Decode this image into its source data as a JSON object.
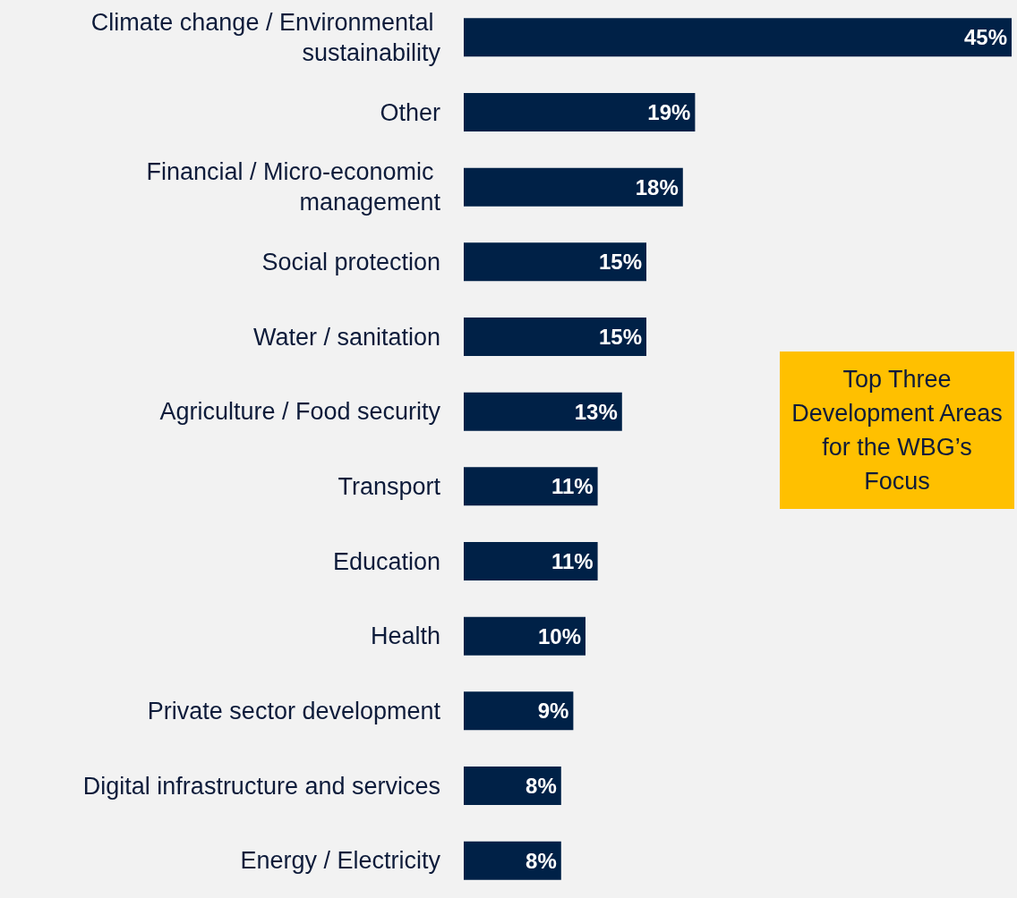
{
  "chart_data": {
    "type": "bar",
    "orientation": "horizontal",
    "categories": [
      "Climate change / Environmental sustainability",
      "Other",
      "Financial / Micro-economic management",
      "Social protection",
      "Water / sanitation",
      "Agriculture / Food security",
      "Transport",
      "Education",
      "Health",
      "Private sector development",
      "Digital infrastructure and services",
      "Energy / Electricity"
    ],
    "values": [
      45,
      19,
      18,
      15,
      15,
      13,
      11,
      11,
      10,
      9,
      8,
      8
    ],
    "color": "#002147",
    "tick_labels": "y",
    "data_labels": true,
    "value_labels": [
      "45%",
      "19%",
      "18%",
      "15%",
      "15%",
      "13%",
      "11%",
      "11%",
      "10%",
      "9%",
      "8%",
      "8%"
    ],
    "annotations": [
      "Top Three Development Areas for the WBG’s Focus"
    ]
  }
}
